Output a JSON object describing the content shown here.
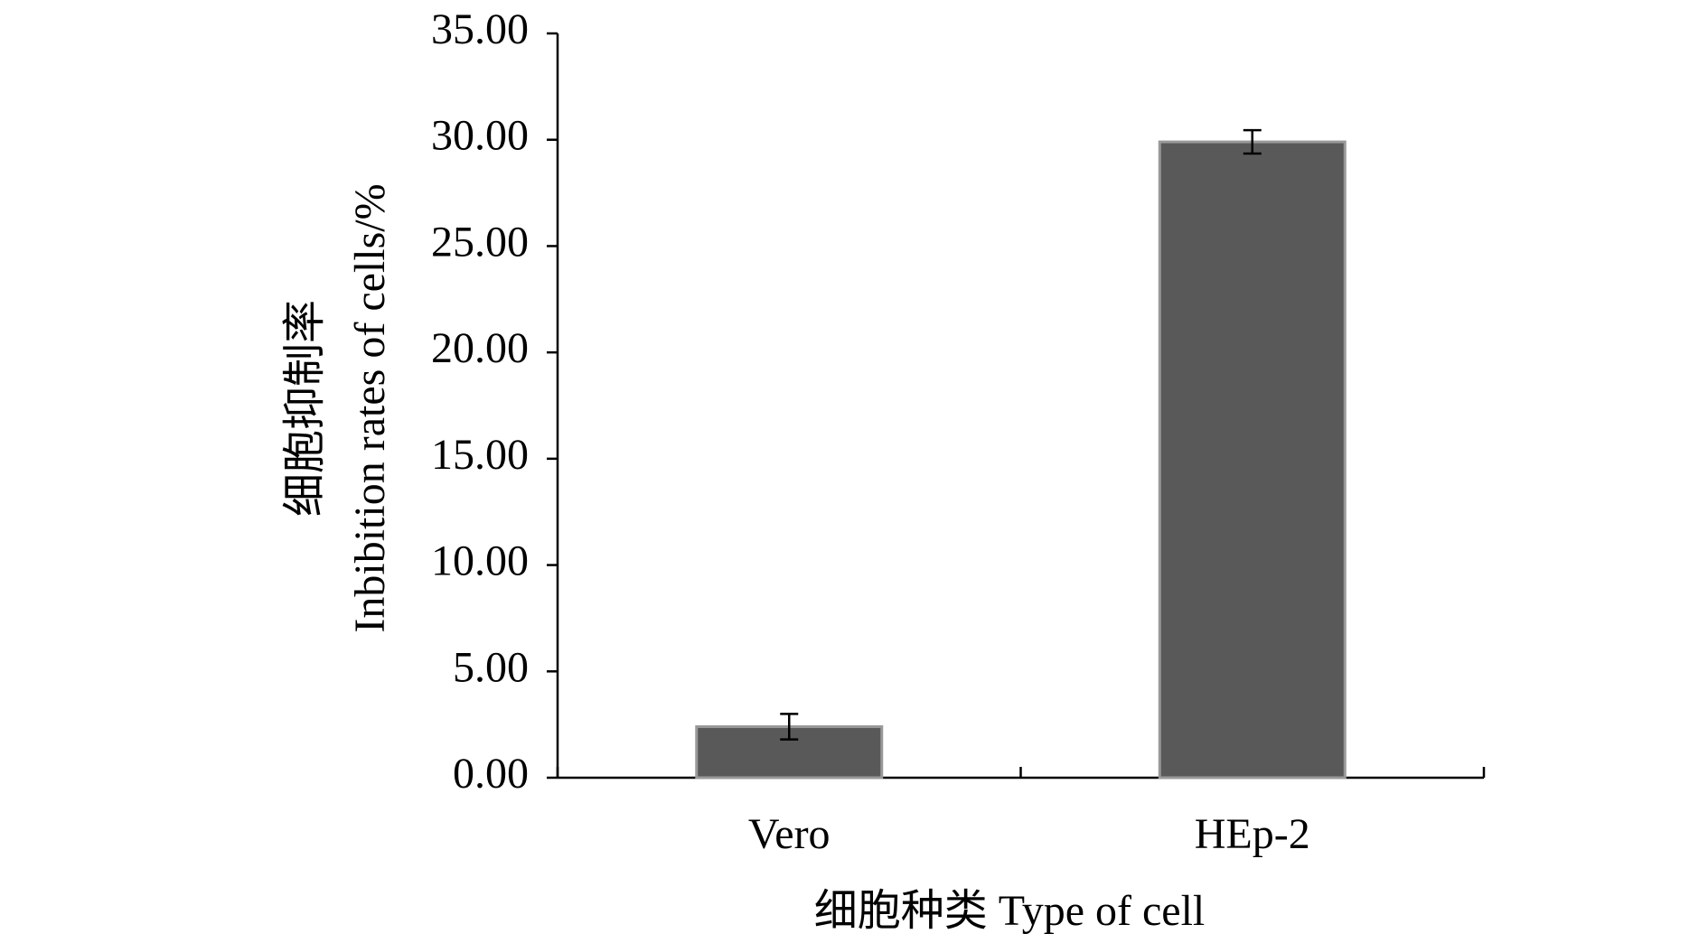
{
  "chart_data": {
    "type": "bar",
    "x_label": "细胞种类 Type of cell",
    "y_label": [
      "细胞抑制率",
      "Inbibition rates of cells/%"
    ],
    "categories": [
      "Vero",
      "HEp-2"
    ],
    "values": [
      2.4,
      29.9
    ],
    "errors": [
      0.6,
      0.55
    ],
    "color": "#595959",
    "ylim": [
      0,
      35
    ],
    "yticks": [
      {
        "value": 0,
        "label": "0.00"
      },
      {
        "value": 5,
        "label": "5.00"
      },
      {
        "value": 10,
        "label": "10.00"
      },
      {
        "value": 15,
        "label": "15.00"
      },
      {
        "value": 20,
        "label": "20.00"
      },
      {
        "value": 25,
        "label": "25.00"
      },
      {
        "value": 30,
        "label": "30.00"
      },
      {
        "value": 35,
        "label": "35.00"
      }
    ],
    "grid": false
  }
}
